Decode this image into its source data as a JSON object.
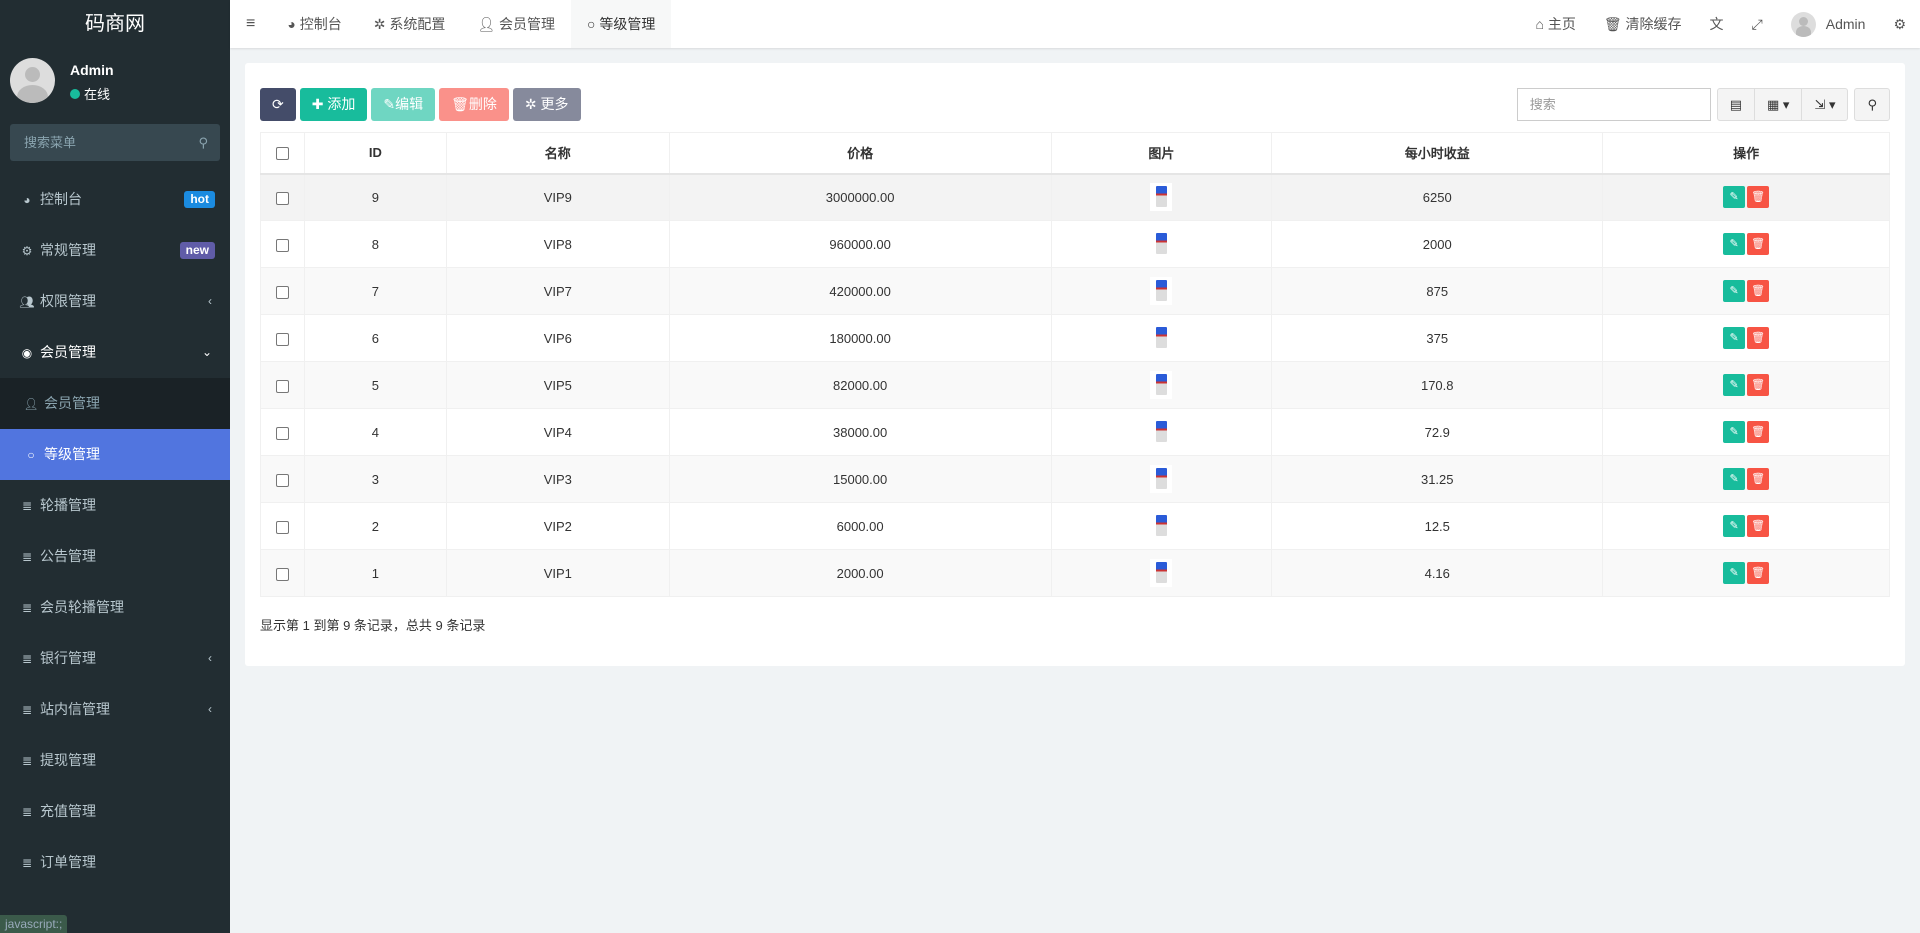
{
  "app": {
    "logo": "码商网",
    "user": "Admin",
    "status": "在线",
    "search_placeholder": "搜索菜单"
  },
  "colors": {
    "sidebar": "#222d32",
    "active": "#5175df",
    "success": "#18bc9c",
    "danger": "#f75444",
    "hot": "#1b8be0",
    "new": "#605ca8"
  },
  "sidebar": {
    "items": [
      {
        "label": "控制台",
        "icon": "dashboard-icon",
        "badge": "hot"
      },
      {
        "label": "常规管理",
        "icon": "cogs-icon",
        "badge": "new"
      },
      {
        "label": "权限管理",
        "icon": "users-icon",
        "arrow": "‹"
      },
      {
        "label": "会员管理",
        "icon": "user-circle-icon",
        "arrow": "⌄"
      },
      {
        "label": "会员管理",
        "icon": "user-icon"
      },
      {
        "label": "等级管理",
        "icon": "circle-icon"
      },
      {
        "label": "轮播管理",
        "icon": "list-icon"
      },
      {
        "label": "公告管理",
        "icon": "list-icon"
      },
      {
        "label": "会员轮播管理",
        "icon": "list-icon"
      },
      {
        "label": "银行管理",
        "icon": "list-icon",
        "arrow": "‹"
      },
      {
        "label": "站内信管理",
        "icon": "list-icon",
        "arrow": "‹"
      },
      {
        "label": "提现管理",
        "icon": "list-icon"
      },
      {
        "label": "充值管理",
        "icon": "list-icon"
      },
      {
        "label": "订单管理",
        "icon": "list-icon"
      }
    ],
    "status_bar": "javascript:;"
  },
  "topnav": {
    "tabs": [
      "控制台",
      "系统配置",
      "会员管理",
      "等级管理"
    ],
    "home": "主页",
    "clear_cache": "清除缓存",
    "user": "Admin"
  },
  "toolbar": {
    "add": "添加",
    "edit": "编辑",
    "delete": "删除",
    "more": "更多",
    "search_placeholder": "搜索"
  },
  "table": {
    "headers": [
      "ID",
      "名称",
      "价格",
      "图片",
      "每小时收益",
      "操作"
    ],
    "rows": [
      [
        "9",
        "VIP9",
        "3000000.00",
        "6250"
      ],
      [
        "8",
        "VIP8",
        "960000.00",
        "2000"
      ],
      [
        "7",
        "VIP7",
        "420000.00",
        "875"
      ],
      [
        "6",
        "VIP6",
        "180000.00",
        "375"
      ],
      [
        "5",
        "VIP5",
        "82000.00",
        "170.8"
      ],
      [
        "4",
        "VIP4",
        "38000.00",
        "72.9"
      ],
      [
        "3",
        "VIP3",
        "15000.00",
        "31.25"
      ],
      [
        "2",
        "VIP2",
        "6000.00",
        "12.5"
      ],
      [
        "1",
        "VIP1",
        "2000.00",
        "4.16"
      ]
    ]
  },
  "pagination": {
    "summary": "显示第 1 到第 9 条记录，总共 9 条记录"
  }
}
